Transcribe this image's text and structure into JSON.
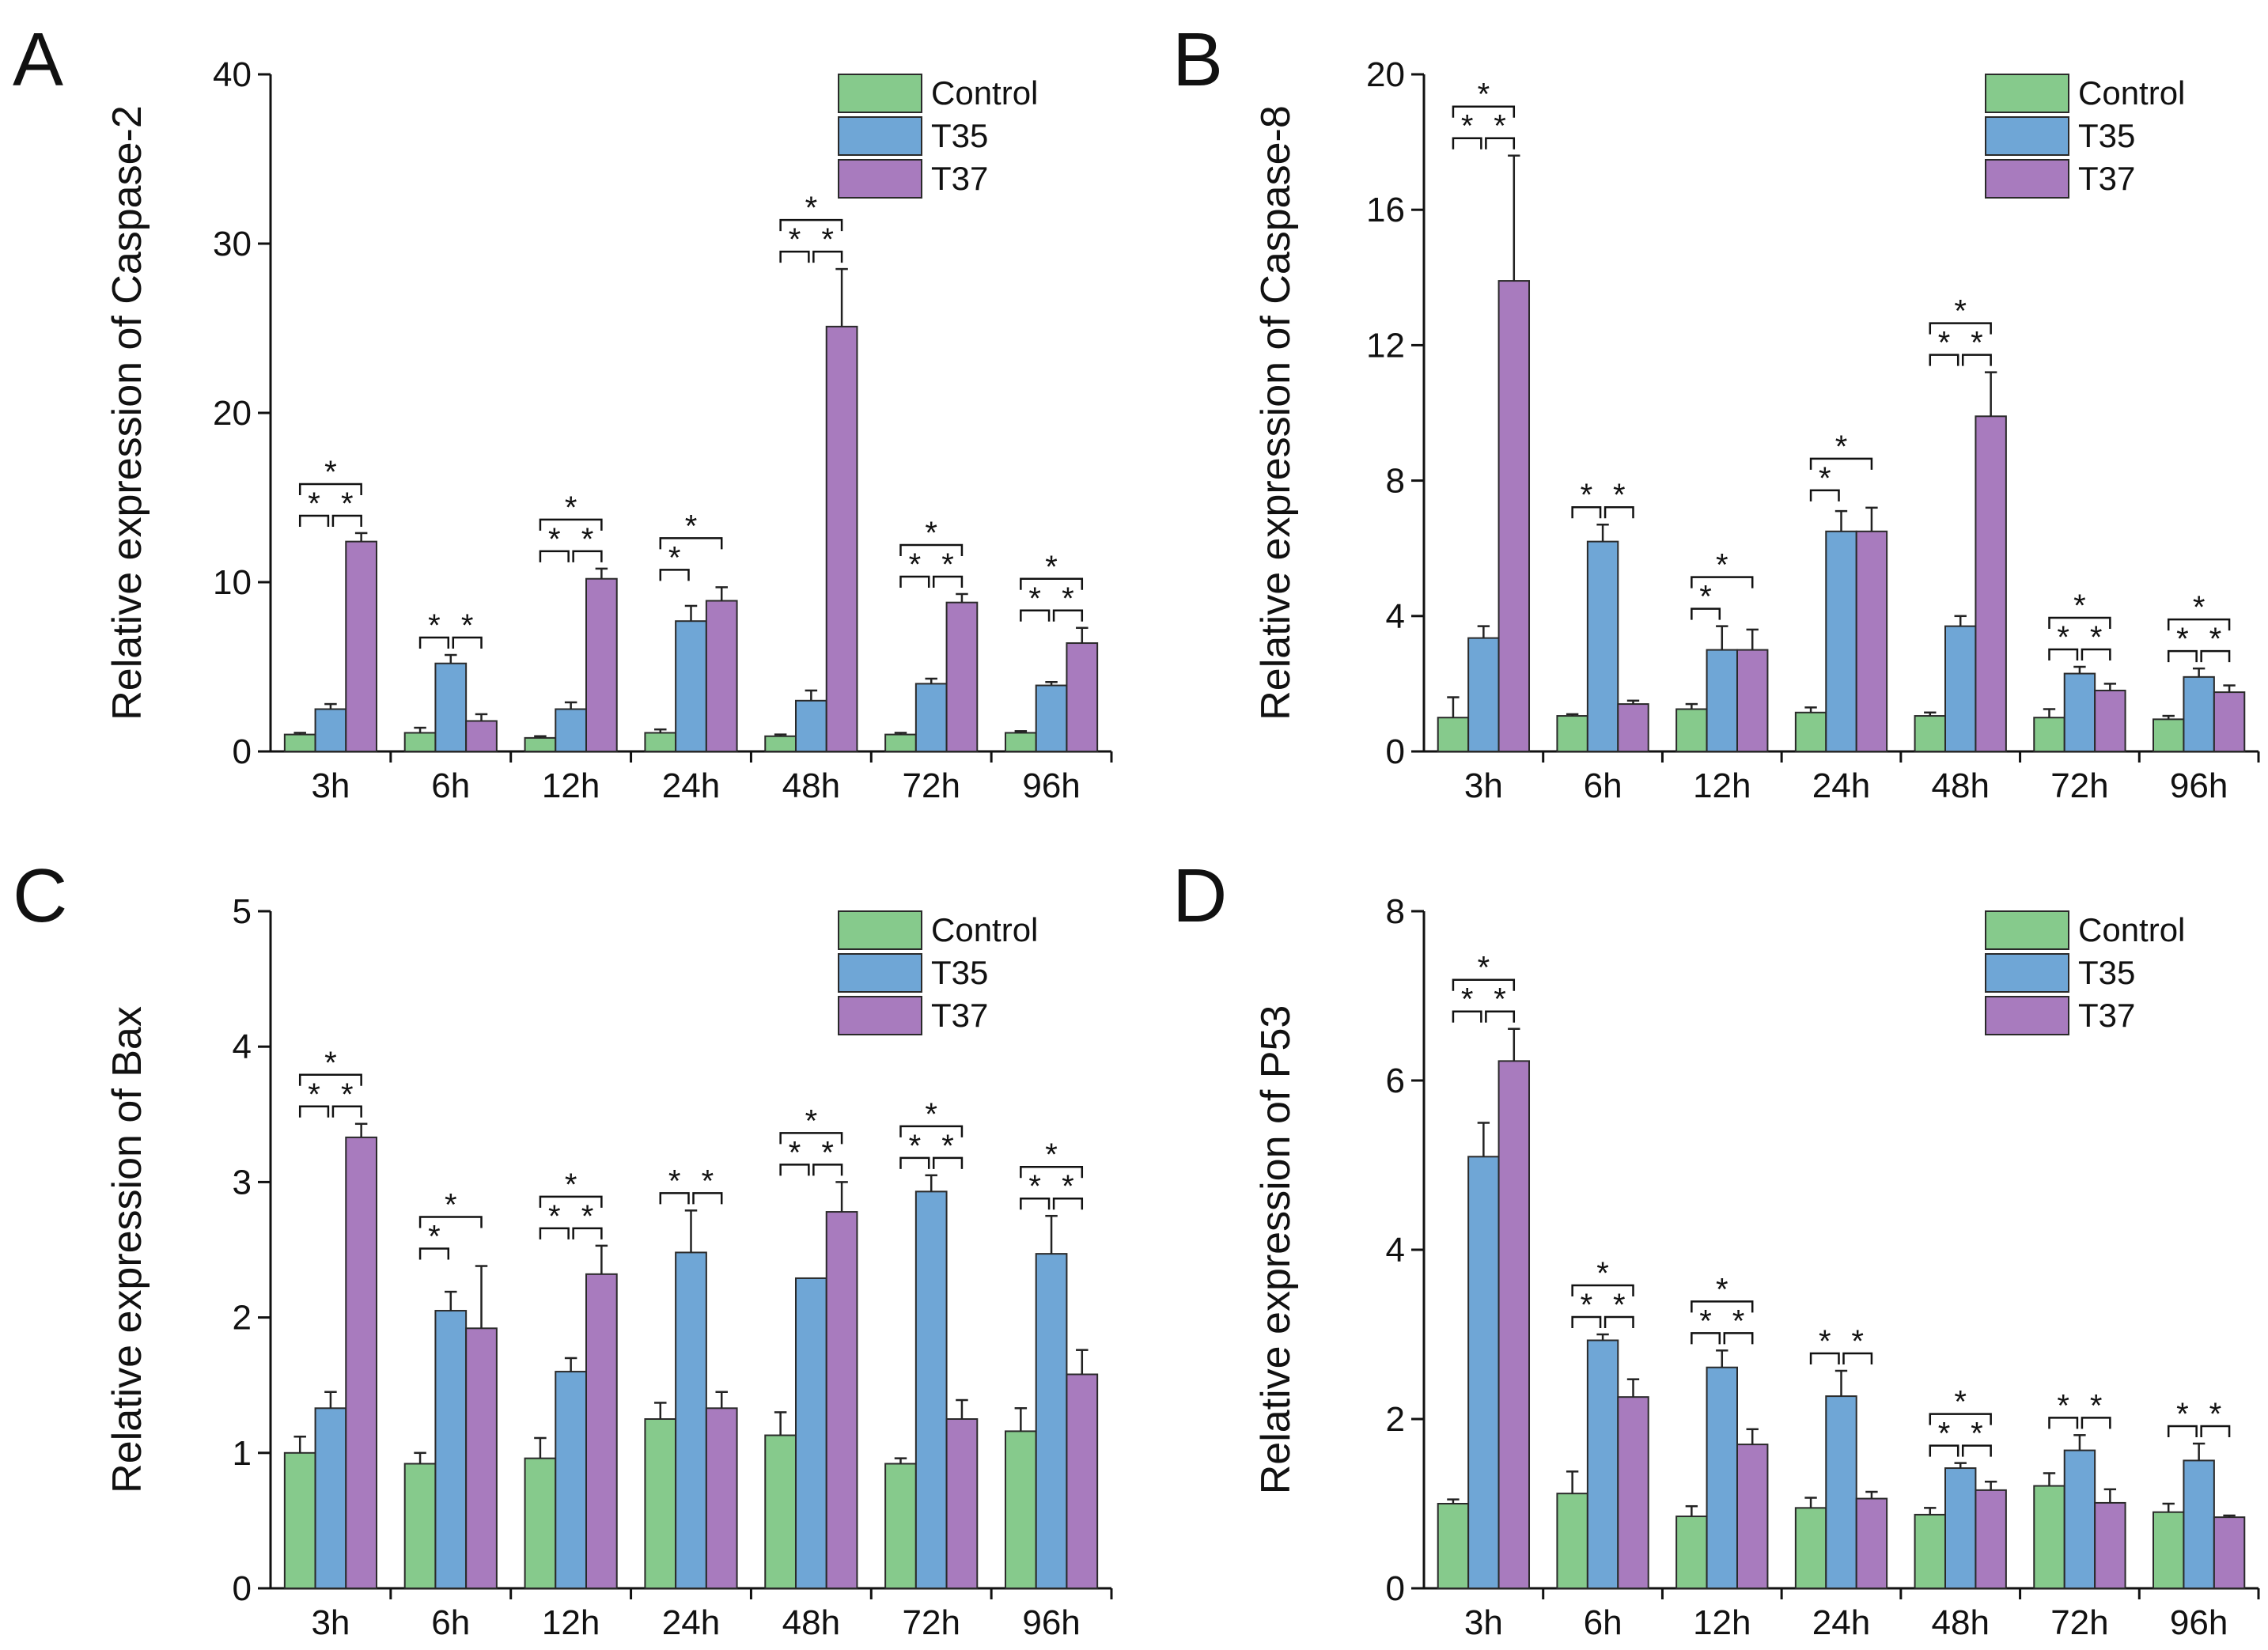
{
  "figure": {
    "series": [
      {
        "name": "Control",
        "color": "#86CA8C"
      },
      {
        "name": "T35",
        "color": "#6FA6D6"
      },
      {
        "name": "T37",
        "color": "#A87BBE"
      }
    ]
  },
  "chart_data": [
    {
      "id": "A",
      "type": "bar",
      "letter": "A",
      "title": "",
      "xlabel": "",
      "ylabel": "Relative expression of Caspase-2",
      "categories": [
        "3h",
        "6h",
        "12h",
        "24h",
        "48h",
        "72h",
        "96h"
      ],
      "ylim": [
        0,
        40
      ],
      "yticks": [
        "0",
        "10",
        "20",
        "30",
        "40"
      ],
      "legend_position": "top-right",
      "series": [
        {
          "name": "Control",
          "values": [
            1.0,
            1.1,
            0.8,
            1.1,
            0.9,
            1.0,
            1.1
          ],
          "errors": [
            0.1,
            0.3,
            0.1,
            0.2,
            0.1,
            0.1,
            0.1
          ]
        },
        {
          "name": "T35",
          "values": [
            2.5,
            5.2,
            2.5,
            7.7,
            3.0,
            4.0,
            3.9
          ],
          "errors": [
            0.3,
            0.5,
            0.4,
            0.9,
            0.6,
            0.3,
            0.2
          ]
        },
        {
          "name": "T37",
          "values": [
            12.4,
            1.8,
            10.2,
            8.9,
            25.1,
            8.8,
            6.4
          ],
          "errors": [
            0.5,
            0.4,
            0.6,
            0.8,
            3.4,
            0.5,
            0.9
          ]
        }
      ],
      "significance": [
        {
          "category": "3h",
          "pairs": [
            [
              0,
              1
            ],
            [
              1,
              2
            ],
            [
              0,
              2
            ]
          ],
          "label": "*"
        },
        {
          "category": "6h",
          "pairs": [
            [
              0,
              1
            ],
            [
              1,
              2
            ]
          ],
          "label": "*"
        },
        {
          "category": "12h",
          "pairs": [
            [
              0,
              1
            ],
            [
              1,
              2
            ],
            [
              0,
              2
            ]
          ],
          "label": "*"
        },
        {
          "category": "24h",
          "pairs": [
            [
              0,
              1
            ],
            [
              0,
              2
            ]
          ],
          "label": "*"
        },
        {
          "category": "48h",
          "pairs": [
            [
              0,
              1
            ],
            [
              1,
              2
            ],
            [
              0,
              2
            ]
          ],
          "label": "*"
        },
        {
          "category": "72h",
          "pairs": [
            [
              0,
              1
            ],
            [
              1,
              2
            ],
            [
              0,
              2
            ]
          ],
          "label": "*"
        },
        {
          "category": "96h",
          "pairs": [
            [
              0,
              1
            ],
            [
              1,
              2
            ],
            [
              0,
              2
            ]
          ],
          "label": "*"
        }
      ]
    },
    {
      "id": "B",
      "type": "bar",
      "letter": "B",
      "title": "",
      "xlabel": "",
      "ylabel": "Relative expression of Caspase-8",
      "categories": [
        "3h",
        "6h",
        "12h",
        "24h",
        "48h",
        "72h",
        "96h"
      ],
      "ylim": [
        0,
        20
      ],
      "yticks": [
        "0",
        "4",
        "8",
        "12",
        "16",
        "20"
      ],
      "legend_position": "top-right",
      "series": [
        {
          "name": "Control",
          "values": [
            1.0,
            1.05,
            1.25,
            1.15,
            1.05,
            1.0,
            0.95
          ],
          "errors": [
            0.6,
            0.05,
            0.15,
            0.15,
            0.1,
            0.25,
            0.1
          ]
        },
        {
          "name": "T35",
          "values": [
            3.35,
            6.2,
            3.0,
            6.5,
            3.7,
            2.3,
            2.2
          ],
          "errors": [
            0.35,
            0.5,
            0.7,
            0.6,
            0.3,
            0.2,
            0.25
          ]
        },
        {
          "name": "T37",
          "values": [
            13.9,
            1.4,
            3.0,
            6.5,
            9.9,
            1.8,
            1.75
          ],
          "errors": [
            3.7,
            0.1,
            0.6,
            0.7,
            1.3,
            0.2,
            0.2
          ]
        }
      ],
      "significance": [
        {
          "category": "3h",
          "pairs": [
            [
              0,
              1
            ],
            [
              1,
              2
            ],
            [
              0,
              2
            ]
          ],
          "label": "*"
        },
        {
          "category": "6h",
          "pairs": [
            [
              0,
              1
            ],
            [
              1,
              2
            ]
          ],
          "label": "*"
        },
        {
          "category": "12h",
          "pairs": [
            [
              0,
              1
            ],
            [
              0,
              2
            ]
          ],
          "label": "*"
        },
        {
          "category": "24h",
          "pairs": [
            [
              0,
              1
            ],
            [
              0,
              2
            ]
          ],
          "label": "*"
        },
        {
          "category": "48h",
          "pairs": [
            [
              0,
              1
            ],
            [
              1,
              2
            ],
            [
              0,
              2
            ]
          ],
          "label": "*"
        },
        {
          "category": "72h",
          "pairs": [
            [
              0,
              1
            ],
            [
              1,
              2
            ],
            [
              0,
              2
            ]
          ],
          "label": "*"
        },
        {
          "category": "96h",
          "pairs": [
            [
              0,
              1
            ],
            [
              1,
              2
            ],
            [
              0,
              2
            ]
          ],
          "label": "*"
        }
      ]
    },
    {
      "id": "C",
      "type": "bar",
      "letter": "C",
      "title": "",
      "xlabel": "",
      "ylabel": "Relative expression of Bax",
      "categories": [
        "3h",
        "6h",
        "12h",
        "24h",
        "48h",
        "72h",
        "96h"
      ],
      "ylim": [
        0,
        5
      ],
      "yticks": [
        "0",
        "1",
        "2",
        "3",
        "4",
        "5"
      ],
      "legend_position": "top-right",
      "series": [
        {
          "name": "Control",
          "values": [
            1.0,
            0.92,
            0.96,
            1.25,
            1.13,
            0.92,
            1.16
          ],
          "errors": [
            0.12,
            0.08,
            0.15,
            0.12,
            0.17,
            0.04,
            0.17
          ]
        },
        {
          "name": "T35",
          "values": [
            1.33,
            2.05,
            1.6,
            2.48,
            2.29,
            2.93,
            2.47
          ],
          "errors": [
            0.12,
            0.14,
            0.1,
            0.31,
            0.0,
            0.12,
            0.28
          ]
        },
        {
          "name": "T37",
          "values": [
            3.33,
            1.92,
            2.32,
            1.33,
            2.78,
            1.25,
            1.58
          ],
          "errors": [
            0.1,
            0.46,
            0.21,
            0.12,
            0.22,
            0.14,
            0.18
          ]
        }
      ],
      "significance": [
        {
          "category": "3h",
          "pairs": [
            [
              0,
              1
            ],
            [
              1,
              2
            ],
            [
              0,
              2
            ]
          ],
          "label": "*"
        },
        {
          "category": "6h",
          "pairs": [
            [
              0,
              1
            ],
            [
              0,
              2
            ]
          ],
          "label": "*"
        },
        {
          "category": "12h",
          "pairs": [
            [
              0,
              1
            ],
            [
              1,
              2
            ],
            [
              0,
              2
            ]
          ],
          "label": "*"
        },
        {
          "category": "24h",
          "pairs": [
            [
              0,
              1
            ],
            [
              1,
              2
            ]
          ],
          "label": "*"
        },
        {
          "category": "48h",
          "pairs": [
            [
              0,
              1
            ],
            [
              1,
              2
            ],
            [
              0,
              2
            ]
          ],
          "label": "*"
        },
        {
          "category": "72h",
          "pairs": [
            [
              0,
              1
            ],
            [
              1,
              2
            ],
            [
              0,
              2
            ]
          ],
          "label": "*"
        },
        {
          "category": "96h",
          "pairs": [
            [
              0,
              1
            ],
            [
              1,
              2
            ],
            [
              0,
              2
            ]
          ],
          "label": "*"
        }
      ]
    },
    {
      "id": "D",
      "type": "bar",
      "letter": "D",
      "title": "",
      "xlabel": "",
      "ylabel": "Relative expression of P53",
      "categories": [
        "3h",
        "6h",
        "12h",
        "24h",
        "48h",
        "72h",
        "96h"
      ],
      "ylim": [
        0,
        8
      ],
      "yticks": [
        "0",
        "2",
        "4",
        "6",
        "8"
      ],
      "legend_position": "top-right",
      "series": [
        {
          "name": "Control",
          "values": [
            1.0,
            1.12,
            0.85,
            0.95,
            0.87,
            1.21,
            0.9
          ],
          "errors": [
            0.05,
            0.26,
            0.12,
            0.12,
            0.08,
            0.15,
            0.1
          ]
        },
        {
          "name": "T35",
          "values": [
            5.1,
            2.93,
            2.61,
            2.27,
            1.42,
            1.63,
            1.51
          ],
          "errors": [
            0.4,
            0.07,
            0.2,
            0.3,
            0.06,
            0.18,
            0.2
          ]
        },
        {
          "name": "T37",
          "values": [
            6.23,
            2.26,
            1.7,
            1.06,
            1.16,
            1.01,
            0.84
          ],
          "errors": [
            0.38,
            0.21,
            0.18,
            0.08,
            0.1,
            0.16,
            0.02
          ]
        }
      ],
      "significance": [
        {
          "category": "3h",
          "pairs": [
            [
              0,
              1
            ],
            [
              1,
              2
            ],
            [
              0,
              2
            ]
          ],
          "label": "*"
        },
        {
          "category": "6h",
          "pairs": [
            [
              0,
              1
            ],
            [
              1,
              2
            ],
            [
              0,
              2
            ]
          ],
          "label": "*"
        },
        {
          "category": "12h",
          "pairs": [
            [
              0,
              1
            ],
            [
              1,
              2
            ],
            [
              0,
              2
            ]
          ],
          "label": "*"
        },
        {
          "category": "24h",
          "pairs": [
            [
              0,
              1
            ],
            [
              1,
              2
            ]
          ],
          "label": "*"
        },
        {
          "category": "48h",
          "pairs": [
            [
              0,
              1
            ],
            [
              1,
              2
            ],
            [
              0,
              2
            ]
          ],
          "label": "*"
        },
        {
          "category": "72h",
          "pairs": [
            [
              0,
              1
            ],
            [
              1,
              2
            ]
          ],
          "label": "*"
        },
        {
          "category": "96h",
          "pairs": [
            [
              0,
              1
            ],
            [
              1,
              2
            ]
          ],
          "label": "*"
        }
      ]
    }
  ]
}
